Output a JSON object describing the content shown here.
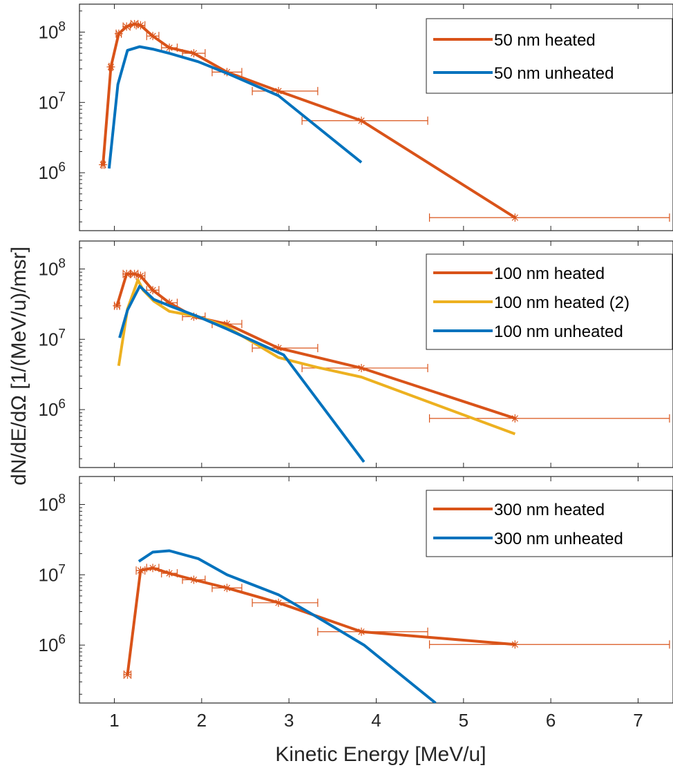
{
  "figure": {
    "xlabel": "Kinetic Energy [MeV/u]",
    "ylabel": "dN/dE/dΩ [1/(MeV/u)/msr]"
  },
  "chart_data": [
    {
      "type": "line",
      "scale": {
        "x": "linear",
        "y": "log"
      },
      "xlim": [
        0.6,
        7.4
      ],
      "ylim": [
        150000,
        250000000
      ],
      "x_ticks": [
        1,
        2,
        3,
        4,
        5,
        6,
        7
      ],
      "show_x_tick_labels": false,
      "y_ticks": [
        {
          "value": 1000000,
          "mantissa": "10",
          "exp": "6"
        },
        {
          "value": 10000000,
          "mantissa": "10",
          "exp": "7"
        },
        {
          "value": 100000000,
          "mantissa": "10",
          "exp": "8"
        }
      ],
      "grid": false,
      "legend_position": "top-right",
      "series": [
        {
          "name": "50 nm heated",
          "color": "#d95319",
          "markers": true,
          "x": [
            0.87,
            0.96,
            1.05,
            1.14,
            1.23,
            1.3,
            1.44,
            1.63,
            1.91,
            2.29,
            2.88,
            3.83,
            5.59
          ],
          "y": [
            1300000,
            32000000,
            95000000,
            120000000,
            130000000,
            125000000,
            88000000,
            60000000,
            50000000,
            27000000,
            14500000,
            5500000,
            230000
          ],
          "xerr_low": [
            0.02,
            0.02,
            0.03,
            0.04,
            0.04,
            0.05,
            0.07,
            0.09,
            0.13,
            0.17,
            0.3,
            0.68,
            0.98
          ],
          "xerr_high": [
            0.02,
            0.02,
            0.03,
            0.04,
            0.04,
            0.05,
            0.07,
            0.09,
            0.13,
            0.17,
            0.45,
            0.76,
            1.77
          ]
        },
        {
          "name": "50 nm unheated",
          "color": "#0072bd",
          "markers": false,
          "x": [
            0.94,
            1.04,
            1.15,
            1.29,
            1.45,
            1.63,
            1.96,
            2.29,
            2.88,
            3.83
          ],
          "y": [
            1150000,
            18000000,
            55000000,
            62000000,
            57000000,
            50000000,
            38000000,
            26000000,
            12500000,
            1400000
          ]
        }
      ]
    },
    {
      "type": "line",
      "scale": {
        "x": "linear",
        "y": "log"
      },
      "xlim": [
        0.6,
        7.4
      ],
      "ylim": [
        150000,
        250000000
      ],
      "x_ticks": [
        1,
        2,
        3,
        4,
        5,
        6,
        7
      ],
      "show_x_tick_labels": false,
      "y_ticks": [
        {
          "value": 1000000,
          "mantissa": "10",
          "exp": "6"
        },
        {
          "value": 10000000,
          "mantissa": "10",
          "exp": "7"
        },
        {
          "value": 100000000,
          "mantissa": "10",
          "exp": "8"
        }
      ],
      "grid": false,
      "legend_position": "top-right",
      "series": [
        {
          "name": "100 nm heated",
          "color": "#d95319",
          "markers": true,
          "x": [
            1.03,
            1.14,
            1.23,
            1.3,
            1.44,
            1.63,
            1.91,
            2.29,
            2.88,
            3.83,
            5.59
          ],
          "y": [
            30000000,
            85000000,
            85000000,
            80000000,
            50000000,
            33000000,
            21000000,
            16500000,
            7500000,
            3900000,
            750000
          ],
          "xerr_low": [
            0.03,
            0.04,
            0.04,
            0.05,
            0.07,
            0.09,
            0.13,
            0.17,
            0.3,
            0.68,
            0.98
          ],
          "xerr_high": [
            0.03,
            0.04,
            0.04,
            0.05,
            0.07,
            0.09,
            0.13,
            0.17,
            0.45,
            0.76,
            1.77
          ]
        },
        {
          "name": "100 nm heated (2)",
          "color": "#edb120",
          "markers": false,
          "x": [
            1.05,
            1.15,
            1.27,
            1.33,
            1.45,
            1.63,
            1.96,
            2.29,
            2.88,
            3.32,
            3.83,
            5.59
          ],
          "y": [
            4200000,
            27000000,
            70000000,
            50000000,
            35000000,
            25000000,
            21000000,
            15000000,
            5500000,
            4000000,
            2900000,
            450000
          ]
        },
        {
          "name": "100 nm unheated",
          "color": "#0072bd",
          "markers": false,
          "x": [
            1.06,
            1.15,
            1.29,
            1.45,
            1.63,
            1.96,
            2.29,
            2.94,
            3.86
          ],
          "y": [
            10500000,
            26000000,
            57000000,
            37000000,
            30000000,
            21000000,
            14000000,
            6000000,
            180000
          ]
        }
      ]
    },
    {
      "type": "line",
      "scale": {
        "x": "linear",
        "y": "log"
      },
      "xlim": [
        0.6,
        7.4
      ],
      "ylim": [
        150000,
        250000000
      ],
      "x_ticks": [
        1,
        2,
        3,
        4,
        5,
        6,
        7
      ],
      "show_x_tick_labels": true,
      "y_ticks": [
        {
          "value": 1000000,
          "mantissa": "10",
          "exp": "6"
        },
        {
          "value": 10000000,
          "mantissa": "10",
          "exp": "7"
        },
        {
          "value": 100000000,
          "mantissa": "10",
          "exp": "8"
        }
      ],
      "grid": false,
      "legend_position": "top-right",
      "series": [
        {
          "name": "300 nm heated",
          "color": "#d95319",
          "markers": true,
          "x": [
            1.15,
            1.3,
            1.44,
            1.63,
            1.91,
            2.29,
            2.88,
            3.83,
            5.59
          ],
          "y": [
            380000,
            11500000,
            12500000,
            10500000,
            8500000,
            6500000,
            4000000,
            1550000,
            1020000
          ],
          "xerr_low": [
            0.04,
            0.05,
            0.07,
            0.09,
            0.13,
            0.17,
            0.3,
            0.5,
            0.98
          ],
          "xerr_high": [
            0.04,
            0.05,
            0.07,
            0.09,
            0.13,
            0.17,
            0.45,
            0.76,
            1.77
          ]
        },
        {
          "name": "300 nm unheated",
          "color": "#0072bd",
          "markers": false,
          "x": [
            1.28,
            1.44,
            1.63,
            1.96,
            2.29,
            2.88,
            3.3,
            3.86,
            4.68
          ],
          "y": [
            15500000,
            21000000,
            22000000,
            17000000,
            10000000,
            5200000,
            2600000,
            1000000,
            150000
          ]
        }
      ]
    }
  ]
}
